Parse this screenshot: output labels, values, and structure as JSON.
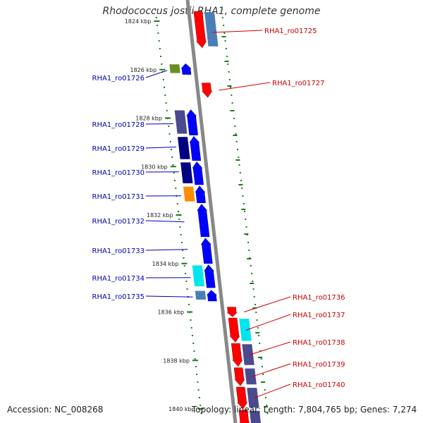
{
  "title": "Rhodococcus jostii RHA1, complete genome",
  "footer": {
    "accession": "Accession: NC_008268",
    "info": "Topology: linear; Length: 7,804,765 bp; Genes: 7,274"
  },
  "colors": {
    "forward_label": "#0000b4",
    "reverse_label": "#cc0000",
    "backbone": "#888888",
    "tick": "#1a7a1a"
  },
  "scale": {
    "unit": "kbp",
    "ticks": [
      {
        "kbp": 1824,
        "label": "1824 kbp"
      },
      {
        "kbp": 1826,
        "label": "1826 kbp"
      },
      {
        "kbp": 1828,
        "label": "1828 kbp"
      },
      {
        "kbp": 1830,
        "label": "1830 kbp"
      },
      {
        "kbp": 1832,
        "label": "1832 kbp"
      },
      {
        "kbp": 1834,
        "label": "1834 kbp"
      },
      {
        "kbp": 1836,
        "label": "1836 kbp"
      },
      {
        "kbp": 1838,
        "label": "1838 kbp"
      },
      {
        "kbp": 1840,
        "label": "1840 kbp"
      }
    ]
  },
  "genes": [
    {
      "id": "RHA1_ro01725",
      "strand": "reverse",
      "start": 1823.6,
      "end": 1825.1,
      "cog_color": "#4a7fb5"
    },
    {
      "id": "RHA1_ro01726",
      "strand": "forward",
      "start": 1825.75,
      "end": 1826.2,
      "cog_color": "#6b8e23"
    },
    {
      "id": "RHA1_ro01727",
      "strand": "reverse",
      "start": 1826.55,
      "end": 1827.15,
      "cog_color": ""
    },
    {
      "id": "RHA1_ro01728",
      "strand": "forward",
      "start": 1827.65,
      "end": 1828.7,
      "cog_color": "#4b4a8f"
    },
    {
      "id": "RHA1_ro01729",
      "strand": "forward",
      "start": 1828.75,
      "end": 1829.75,
      "cog_color": "#000080"
    },
    {
      "id": "RHA1_ro01730",
      "strand": "forward",
      "start": 1829.8,
      "end": 1830.75,
      "cog_color": "#000080"
    },
    {
      "id": "RHA1_ro01731",
      "strand": "forward",
      "start": 1830.8,
      "end": 1831.5,
      "cog_color": "#ff8c00"
    },
    {
      "id": "RHA1_ro01732",
      "strand": "forward",
      "start": 1831.55,
      "end": 1832.9,
      "cog_color": ""
    },
    {
      "id": "RHA1_ro01733",
      "strand": "forward",
      "start": 1832.95,
      "end": 1834.0,
      "cog_color": ""
    },
    {
      "id": "RHA1_ro01734",
      "strand": "forward",
      "start": 1834.05,
      "end": 1835.0,
      "cog_color": "#00e5ee"
    },
    {
      "id": "RHA1_ro01735",
      "strand": "forward",
      "start": 1835.1,
      "end": 1835.55,
      "cog_color": "#4a7fb5"
    },
    {
      "id": "RHA1_ro01736",
      "strand": "reverse",
      "start": 1835.8,
      "end": 1836.2,
      "cog_color": ""
    },
    {
      "id": "RHA1_ro01737",
      "strand": "reverse",
      "start": 1836.25,
      "end": 1837.25,
      "cog_color": "#00e5ee"
    },
    {
      "id": "RHA1_ro01738",
      "strand": "reverse",
      "start": 1837.3,
      "end": 1838.25,
      "cog_color": "#4b4a8f"
    },
    {
      "id": "RHA1_ro01739",
      "strand": "reverse",
      "start": 1838.3,
      "end": 1839.05,
      "cog_color": "#4b4a8f"
    },
    {
      "id": "RHA1_ro01740",
      "strand": "reverse",
      "start": 1839.1,
      "end": 1840.0,
      "cog_color": "#4b4a8f"
    },
    {
      "id": "",
      "strand": "reverse",
      "start": 1840.05,
      "end": 1840.8,
      "cog_color": "#4b4a8f"
    }
  ]
}
